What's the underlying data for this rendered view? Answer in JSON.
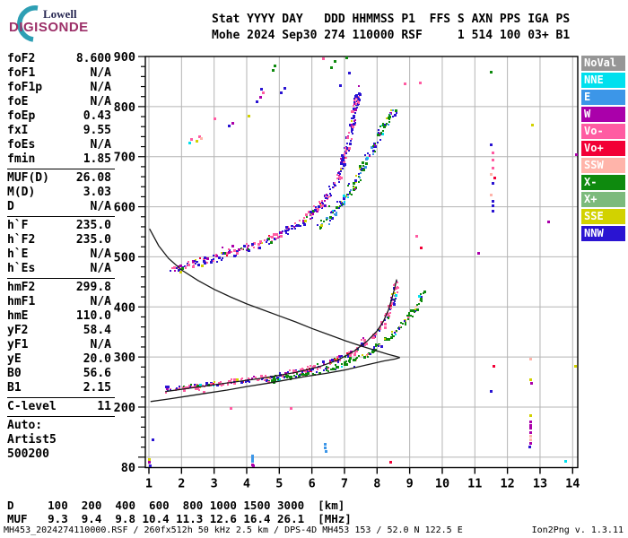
{
  "logo": {
    "line1": "Lowell",
    "line2": "DIGISONDE"
  },
  "header": {
    "line1": "Stat YYYY DAY   DDD HHMMSS P1  FFS S AXN PPS IGA PS",
    "line2": "Mohe 2024 Sep30 274 110000 RSF     1 514 100 03+ B1"
  },
  "left_panel": {
    "sections": [
      [
        [
          "foF2",
          "8.600"
        ],
        [
          "foF1",
          "N/A"
        ],
        [
          "foF1p",
          "N/A"
        ],
        [
          "foE",
          "N/A"
        ],
        [
          "foEp",
          "0.43"
        ],
        [
          "fxI",
          "9.55"
        ],
        [
          "foEs",
          "N/A"
        ],
        [
          "fmin",
          "1.85"
        ]
      ],
      [
        [
          "MUF(D)",
          "26.08"
        ],
        [
          "M(D)",
          "3.03"
        ],
        [
          "D",
          "N/A"
        ]
      ],
      [
        [
          "h`F",
          "235.0"
        ],
        [
          "h`F2",
          "235.0"
        ],
        [
          "h`E",
          "N/A"
        ],
        [
          "h`Es",
          "N/A"
        ]
      ],
      [
        [
          "hmF2",
          "299.8"
        ],
        [
          "hmF1",
          "N/A"
        ],
        [
          "hmE",
          "110.0"
        ],
        [
          "yF2",
          "58.4"
        ],
        [
          "yF1",
          "N/A"
        ],
        [
          "yE",
          "20.0"
        ],
        [
          "B0",
          "56.6"
        ],
        [
          "B1",
          "2.15"
        ]
      ],
      [
        [
          "C-level",
          "11"
        ]
      ]
    ],
    "auto_lines": [
      "Auto:",
      "Artist5",
      "500200"
    ]
  },
  "muf_table": {
    "d_row": "D     100  200  400  600  800 1000 1500 3000  [km]",
    "muf_row": "MUF   9.3  9.4  9.8 10.4 11.3 12.6 16.4 26.1  [MHz]"
  },
  "status_bar": {
    "left": "MH453_2024274110000.RSF / 260fx512h 50 kHz 2.5 km / DPS-4D MH453 153 / 52.0 N 122.5 E",
    "right": "Ion2Png v. 1.3.11"
  },
  "chart_data": {
    "type": "scatter",
    "title": "Digisonde ionogram Mohe 2024-09-30 11:00:00",
    "x_unit": "MHz",
    "y_unit": "km",
    "xlim": [
      0.9,
      14.2
    ],
    "ylim": [
      80,
      900
    ],
    "x_ticks": [
      1,
      2,
      3,
      4,
      5,
      6,
      7,
      8,
      9,
      10,
      11,
      12,
      13,
      14
    ],
    "y_tick_labels": [
      900,
      800,
      700,
      600,
      500,
      400,
      300,
      200,
      80
    ],
    "grid": "on",
    "legend_position": "right-outside",
    "legend": [
      {
        "label": "NoVal",
        "color": "#969696"
      },
      {
        "label": "NNE",
        "color": "#00E0EE"
      },
      {
        "label": "E",
        "color": "#3C96E8"
      },
      {
        "label": "W",
        "color": "#AA00AA"
      },
      {
        "label": "Vo-",
        "color": "#FF5CA2"
      },
      {
        "label": "Vo+",
        "color": "#F20036"
      },
      {
        "label": "SSW",
        "color": "#FFB4AA"
      },
      {
        "label": "X-",
        "color": "#0E8A0E"
      },
      {
        "label": "X+",
        "color": "#7CBA7C"
      },
      {
        "label": "SSE",
        "color": "#D2D200"
      },
      {
        "label": "NNW",
        "color": "#2A14D2"
      }
    ],
    "traces": [
      {
        "name": "F-trace 1st hop O-mode",
        "seed": 11,
        "count": 280,
        "jitter_f": 0.07,
        "jitter_h": 5,
        "path": [
          [
            1.55,
            237
          ],
          [
            2,
            239
          ],
          [
            2.5,
            242
          ],
          [
            3,
            246
          ],
          [
            3.5,
            250
          ],
          [
            4,
            254
          ],
          [
            4.5,
            258
          ],
          [
            5,
            264
          ],
          [
            5.5,
            270
          ],
          [
            6,
            278
          ],
          [
            6.5,
            288
          ],
          [
            7,
            301
          ],
          [
            7.4,
            316
          ],
          [
            7.8,
            336
          ],
          [
            8.1,
            358
          ],
          [
            8.3,
            380
          ],
          [
            8.45,
            405
          ],
          [
            8.55,
            428
          ],
          [
            8.62,
            450
          ]
        ],
        "colors": {
          "Vo-": 0.5,
          "NNW": 0.27,
          "W": 0.08,
          "Vo+": 0.05,
          "X-": 0.04,
          "SSE": 0.03,
          "NNE": 0.03
        }
      },
      {
        "name": "F-trace 1st hop X-mode",
        "seed": 22,
        "count": 160,
        "jitter_f": 0.07,
        "jitter_h": 5,
        "path": [
          [
            4.6,
            251
          ],
          [
            5,
            256
          ],
          [
            5.5,
            261
          ],
          [
            6,
            267
          ],
          [
            6.5,
            275
          ],
          [
            7,
            286
          ],
          [
            7.5,
            300
          ],
          [
            8,
            319
          ],
          [
            8.4,
            340
          ],
          [
            8.8,
            366
          ],
          [
            9.1,
            392
          ],
          [
            9.3,
            414
          ],
          [
            9.42,
            432
          ]
        ],
        "colors": {
          "X-": 0.7,
          "NNW": 0.15,
          "NNE": 0.03,
          "SSW": 0.04,
          "Vo-": 0.03,
          "SSE": 0.05
        }
      },
      {
        "name": "F-trace 2nd hop O-mode",
        "seed": 33,
        "count": 320,
        "jitter_f": 0.08,
        "jitter_h": 7,
        "path": [
          [
            1.7,
            477
          ],
          [
            2.2,
            484
          ],
          [
            2.7,
            492
          ],
          [
            3.2,
            501
          ],
          [
            3.7,
            511
          ],
          [
            4.2,
            522
          ],
          [
            4.7,
            535
          ],
          [
            5.2,
            550
          ],
          [
            5.7,
            570
          ],
          [
            6.1,
            592
          ],
          [
            6.5,
            622
          ],
          [
            6.8,
            660
          ],
          [
            7.0,
            700
          ],
          [
            7.15,
            740
          ],
          [
            7.3,
            785
          ],
          [
            7.4,
            828
          ]
        ],
        "colors": {
          "NNW": 0.5,
          "Vo-": 0.28,
          "W": 0.12,
          "X-": 0.04,
          "Vo+": 0.03,
          "SSE": 0.03
        }
      },
      {
        "name": "F-trace 2nd hop X-mode",
        "seed": 44,
        "count": 140,
        "jitter_f": 0.09,
        "jitter_h": 8,
        "path": [
          [
            6.2,
            558
          ],
          [
            6.6,
            584
          ],
          [
            7.0,
            614
          ],
          [
            7.4,
            655
          ],
          [
            7.7,
            695
          ],
          [
            8.0,
            735
          ],
          [
            8.3,
            768
          ],
          [
            8.55,
            792
          ]
        ],
        "colors": {
          "X-": 0.42,
          "NNW": 0.28,
          "E": 0.14,
          "NNE": 0.05,
          "W": 0.06,
          "SSE": 0.05
        }
      }
    ],
    "scatter_points": [
      [
        2.25,
        728,
        "NNE"
      ],
      [
        2.3,
        736,
        "Vo-"
      ],
      [
        2.45,
        732,
        "SSE"
      ],
      [
        2.55,
        741,
        "Vo-"
      ],
      [
        2.6,
        737,
        "SSW"
      ],
      [
        3.0,
        776,
        "Vo-"
      ],
      [
        3.45,
        762,
        "NNW"
      ],
      [
        3.55,
        767,
        "W"
      ],
      [
        4.05,
        781,
        "SSE"
      ],
      [
        4.3,
        810,
        "NNW"
      ],
      [
        4.4,
        820,
        "W"
      ],
      [
        4.5,
        828,
        "Vo-"
      ],
      [
        4.45,
        836,
        "NNW"
      ],
      [
        4.8,
        874,
        "X-"
      ],
      [
        4.85,
        882,
        "X-"
      ],
      [
        5.05,
        829,
        "NNW"
      ],
      [
        5.15,
        837,
        "NNW"
      ],
      [
        6.35,
        896,
        "Vo-"
      ],
      [
        6.6,
        878,
        "X-"
      ],
      [
        6.7,
        891,
        "X-"
      ],
      [
        6.85,
        843,
        "NNW"
      ],
      [
        7.05,
        898,
        "X-"
      ],
      [
        7.15,
        868,
        "NNW"
      ],
      [
        8.85,
        846,
        "Vo-"
      ],
      [
        9.3,
        848,
        "Vo-"
      ],
      [
        11.5,
        869,
        "X-"
      ],
      [
        11.5,
        724,
        "NNW"
      ],
      [
        11.55,
        708,
        "Vo-"
      ],
      [
        11.53,
        694,
        "Vo-"
      ],
      [
        11.55,
        678,
        "Vo-"
      ],
      [
        11.5,
        666,
        "SSW"
      ],
      [
        11.6,
        658,
        "Vo+"
      ],
      [
        11.55,
        648,
        "NNW"
      ],
      [
        11.5,
        624,
        "SSW"
      ],
      [
        11.55,
        612,
        "NNW"
      ],
      [
        11.54,
        602,
        "NNW"
      ],
      [
        11.55,
        592,
        "NNW"
      ],
      [
        11.58,
        282,
        "Vo+"
      ],
      [
        11.5,
        232,
        "NNW"
      ],
      [
        12.76,
        764,
        "SSE"
      ],
      [
        12.7,
        297,
        "SSW"
      ],
      [
        12.7,
        255,
        "SSE"
      ],
      [
        12.72,
        249,
        "W"
      ],
      [
        12.7,
        184,
        "SSE"
      ],
      [
        12.7,
        172,
        "W"
      ],
      [
        12.7,
        165,
        "W"
      ],
      [
        12.7,
        158,
        "W"
      ],
      [
        12.71,
        150,
        "W"
      ],
      [
        12.7,
        142,
        "SSW"
      ],
      [
        12.7,
        135,
        "SSW"
      ],
      [
        12.7,
        128,
        "W"
      ],
      [
        12.68,
        122,
        "NNW"
      ],
      [
        13.26,
        570,
        "W"
      ],
      [
        14.1,
        705,
        "W"
      ],
      [
        14.08,
        282,
        "SSE"
      ],
      [
        13.78,
        92,
        "NNE"
      ],
      [
        3.5,
        199,
        "Vo-"
      ],
      [
        5.35,
        199,
        "Vo-"
      ],
      [
        1.1,
        135,
        "NNW"
      ],
      [
        1.0,
        96,
        "SSE"
      ],
      [
        1.0,
        90,
        "W"
      ],
      [
        1.03,
        84,
        "NNW"
      ],
      [
        4.17,
        104,
        "E"
      ],
      [
        4.17,
        98,
        "E"
      ],
      [
        4.17,
        92,
        "E"
      ],
      [
        4.16,
        86,
        "W"
      ],
      [
        4.19,
        84,
        "W"
      ],
      [
        6.4,
        126,
        "E"
      ],
      [
        6.4,
        119,
        "E"
      ],
      [
        6.41,
        112,
        "E"
      ],
      [
        8.4,
        91,
        "Vo+"
      ],
      [
        9.2,
        542,
        "Vo-"
      ],
      [
        11.1,
        508,
        "W"
      ],
      [
        9.35,
        518,
        "Vo+"
      ]
    ],
    "black_curves": {
      "trace_fit": [
        [
          1.5,
          231
        ],
        [
          2.5,
          240
        ],
        [
          3.5,
          249
        ],
        [
          4.5,
          258
        ],
        [
          5.5,
          269
        ],
        [
          6.2,
          280
        ],
        [
          6.8,
          294
        ],
        [
          7.3,
          312
        ],
        [
          7.7,
          332
        ],
        [
          8.0,
          352
        ],
        [
          8.2,
          372
        ],
        [
          8.35,
          394
        ],
        [
          8.45,
          416
        ],
        [
          8.55,
          440
        ],
        [
          8.6,
          455
        ]
      ],
      "profile_topside": [
        [
          1.02,
          556
        ],
        [
          1.3,
          522
        ],
        [
          1.6,
          497
        ],
        [
          2.0,
          474
        ],
        [
          2.5,
          453
        ],
        [
          3.0,
          435
        ],
        [
          3.5,
          420
        ],
        [
          4.0,
          406
        ],
        [
          4.5,
          394
        ],
        [
          5.0,
          382
        ],
        [
          5.5,
          370
        ],
        [
          6.0,
          357
        ],
        [
          6.5,
          345
        ],
        [
          7.0,
          333
        ],
        [
          7.5,
          322
        ],
        [
          8.0,
          312
        ],
        [
          8.35,
          305
        ],
        [
          8.6,
          301
        ],
        [
          8.7,
          299
        ]
      ],
      "profile_bottomside": [
        [
          8.7,
          299
        ],
        [
          8.55,
          296
        ],
        [
          8.2,
          292
        ],
        [
          7.6,
          283
        ],
        [
          7.0,
          274
        ],
        [
          6.4,
          267
        ],
        [
          5.8,
          261
        ],
        [
          5.2,
          254
        ],
        [
          4.6,
          247
        ],
        [
          4.0,
          241
        ],
        [
          3.4,
          234
        ],
        [
          2.8,
          228
        ],
        [
          2.2,
          222
        ],
        [
          1.6,
          216
        ],
        [
          1.05,
          211
        ]
      ]
    }
  }
}
